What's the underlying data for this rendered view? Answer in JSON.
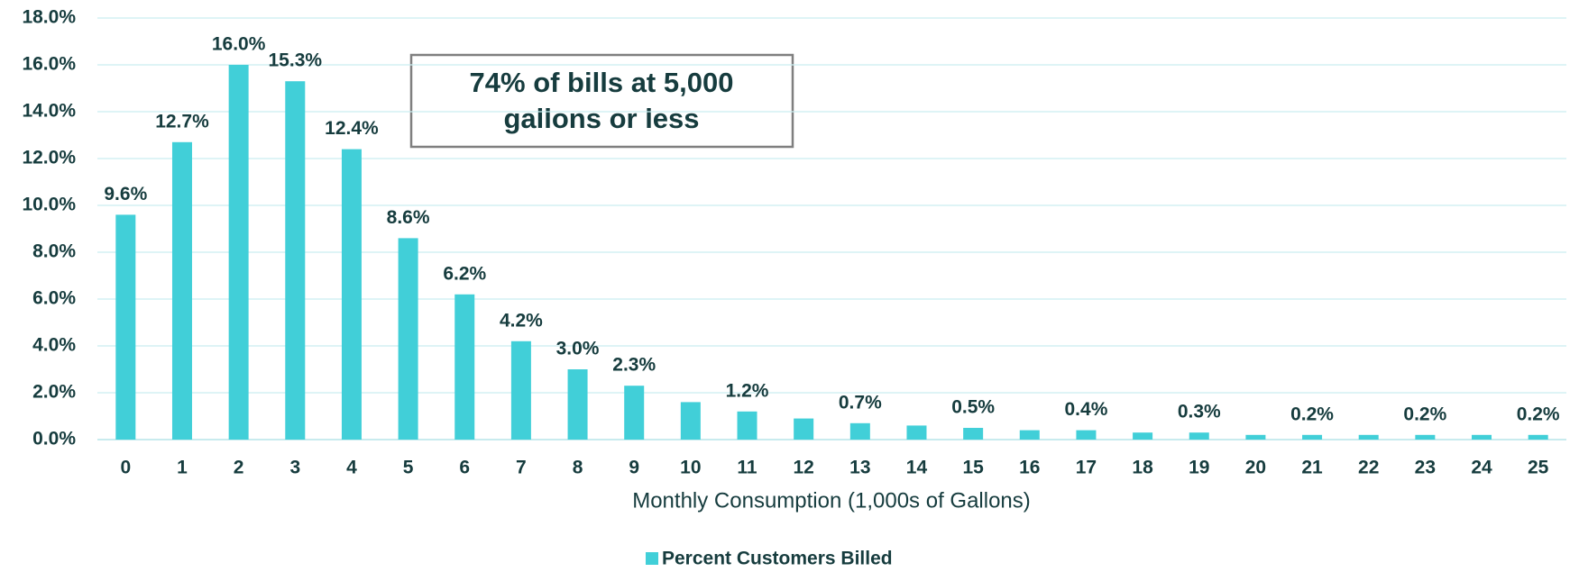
{
  "chart_data": {
    "type": "bar",
    "x_label": "Monthly Consumption (1,000s of Gallons)",
    "annotation": [
      "74% of bills at 5,000",
      "gallons or less"
    ],
    "categories": [
      "0",
      "1",
      "2",
      "3",
      "4",
      "5",
      "6",
      "7",
      "8",
      "9",
      "10",
      "11",
      "12",
      "13",
      "14",
      "15",
      "16",
      "17",
      "18",
      "19",
      "20",
      "21",
      "22",
      "23",
      "24",
      "25"
    ],
    "series": [
      {
        "name": "Percent Customers Billed",
        "color": "#41cfd8",
        "values": [
          9.6,
          12.7,
          16.0,
          15.3,
          12.4,
          8.6,
          6.2,
          4.2,
          3.0,
          2.3,
          1.6,
          1.2,
          0.9,
          0.7,
          0.6,
          0.5,
          0.4,
          0.4,
          0.3,
          0.3,
          0.2,
          0.2,
          0.2,
          0.2,
          0.2,
          0.2
        ],
        "value_labels": [
          "9.6%",
          "12.7%",
          "16.0%",
          "15.3%",
          "12.4%",
          "8.6%",
          "6.2%",
          "4.2%",
          "3.0%",
          "2.3%",
          null,
          "1.2%",
          null,
          "0.7%",
          null,
          "0.5%",
          null,
          "0.4%",
          null,
          "0.3%",
          null,
          "0.2%",
          null,
          "0.2%",
          null,
          "0.2%"
        ]
      }
    ],
    "ylim": [
      0,
      18
    ],
    "yticks": [
      {
        "value": 0,
        "label": "0.0%"
      },
      {
        "value": 2,
        "label": "2.0%"
      },
      {
        "value": 4,
        "label": "4.0%"
      },
      {
        "value": 6,
        "label": "6.0%"
      },
      {
        "value": 8,
        "label": "8.0%"
      },
      {
        "value": 10,
        "label": "10.0%"
      },
      {
        "value": 12,
        "label": "12.0%"
      },
      {
        "value": 14,
        "label": "14.0%"
      },
      {
        "value": 16,
        "label": "16.0%"
      },
      {
        "value": 18,
        "label": "18.0%"
      }
    ],
    "grid": true,
    "legend": "bottom"
  }
}
